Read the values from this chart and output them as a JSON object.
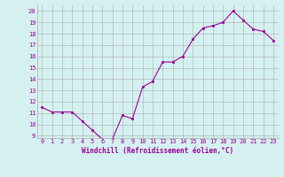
{
  "x": [
    0,
    1,
    2,
    3,
    4,
    5,
    6,
    7,
    8,
    9,
    10,
    11,
    12,
    13,
    14,
    15,
    16,
    17,
    18,
    19,
    20,
    21,
    22,
    23
  ],
  "y": [
    11.5,
    11.1,
    11.1,
    11.1,
    10.3,
    9.5,
    8.7,
    8.7,
    10.8,
    10.5,
    13.3,
    13.8,
    15.5,
    15.5,
    16.0,
    17.5,
    18.5,
    18.7,
    19.0,
    20.0,
    19.2,
    18.4,
    18.2,
    17.4
  ],
  "ylim_min": 8.8,
  "ylim_max": 20.5,
  "yticks": [
    9,
    10,
    11,
    12,
    13,
    14,
    15,
    16,
    17,
    18,
    19,
    20
  ],
  "xticks": [
    0,
    1,
    2,
    3,
    4,
    5,
    6,
    7,
    8,
    9,
    10,
    11,
    12,
    13,
    14,
    15,
    16,
    17,
    18,
    19,
    20,
    21,
    22,
    23
  ],
  "xlabel": "Windchill (Refroidissement éolien,°C)",
  "line_color": "#990099",
  "marker": "s",
  "markersize": 2.0,
  "bg_color": "#d5f0f0",
  "grid_color": "#aaaaaa",
  "text_color": "#990099",
  "font_family": "monospace",
  "tick_fontsize": 5.0,
  "xlabel_fontsize": 5.5
}
